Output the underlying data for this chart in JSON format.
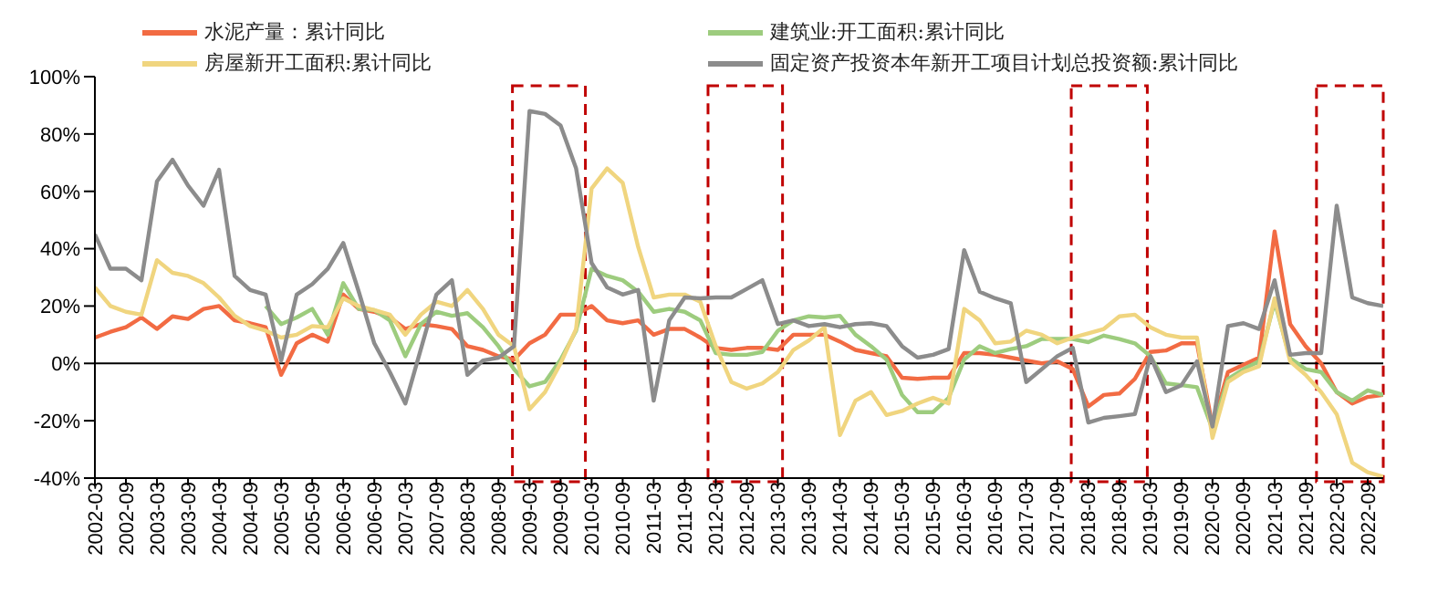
{
  "chart_data": {
    "type": "line",
    "categories": [
      "2002-03",
      null,
      "2002-09",
      null,
      "2003-03",
      null,
      "2003-09",
      null,
      "2004-03",
      null,
      "2004-09",
      null,
      "2005-03",
      null,
      "2005-09",
      null,
      "2006-03",
      null,
      "2006-09",
      null,
      "2007-03",
      null,
      "2007-09",
      null,
      "2008-03",
      null,
      "2008-09",
      null,
      "2009-03",
      null,
      "2009-09",
      null,
      "2010-03",
      null,
      "2010-09",
      null,
      "2011-03",
      null,
      "2011-09",
      null,
      "2012-03",
      null,
      "2012-09",
      null,
      "2013-03",
      null,
      "2013-09",
      null,
      "2014-03",
      null,
      "2014-09",
      null,
      "2015-03",
      null,
      "2015-09",
      null,
      "2016-03",
      null,
      "2016-09",
      null,
      "2017-03",
      null,
      "2017-09",
      null,
      "2018-03",
      null,
      "2018-09",
      null,
      "2019-03",
      null,
      "2019-09",
      null,
      "2020-03",
      null,
      "2020-09",
      null,
      "2021-03",
      null,
      "2021-09",
      null,
      "2022-03",
      null,
      "2022-09",
      null
    ],
    "series": [
      {
        "name": "水泥产量：累计同比",
        "color": "#f26b43",
        "values": [
          9,
          11,
          12.6,
          16,
          12,
          16.4,
          15.5,
          19,
          20,
          15,
          14,
          12.6,
          -4,
          7,
          10,
          7.6,
          24,
          19,
          18,
          16,
          12,
          13.7,
          13,
          12,
          6,
          4.7,
          2.5,
          1.3,
          7,
          10,
          17,
          17,
          20,
          15,
          14,
          15,
          10,
          12,
          12,
          9,
          5.4,
          4.7,
          5.4,
          5.4,
          4.7,
          10,
          10,
          10,
          7.6,
          4.7,
          3.6,
          2.5,
          -5,
          -5.4,
          -5,
          -5,
          3.6,
          3.6,
          3,
          2,
          1,
          0,
          0.7,
          -2,
          -15,
          -11,
          -10.5,
          -5.4,
          4,
          4.5,
          7,
          7,
          -22,
          -3,
          -0.5,
          2,
          46,
          13.7,
          6,
          0,
          -10,
          -14,
          -11.7,
          -11
        ]
      },
      {
        "name": "建筑业:开工面积:累计同比",
        "color": "#9dcc7e",
        "values": [
          null,
          null,
          null,
          null,
          null,
          null,
          null,
          null,
          null,
          null,
          null,
          20,
          13.7,
          16,
          19,
          10,
          28,
          19,
          18.6,
          15,
          2.5,
          13.7,
          18,
          16.6,
          17.5,
          12.6,
          6,
          -2,
          -8,
          -6.5,
          1.3,
          11.4,
          33,
          30.5,
          29,
          25,
          18,
          19,
          18,
          15,
          3.6,
          3,
          3,
          4,
          11.4,
          15,
          16.4,
          16,
          16.6,
          10,
          6,
          1.3,
          -11,
          -17,
          -17,
          -12,
          1.3,
          6,
          3.6,
          5,
          6,
          8.5,
          8.5,
          8.5,
          7.4,
          9.7,
          8.5,
          7,
          2.5,
          -7,
          -7.6,
          -8.3,
          -23,
          -5.4,
          -2,
          0.7,
          21.5,
          1.8,
          -2,
          -3,
          -10,
          -13,
          -9.4,
          -11
        ]
      },
      {
        "name": "房屋新开工面积:累计同比",
        "color": "#f0d57f",
        "values": [
          26.5,
          20,
          18,
          17,
          36,
          31.6,
          30.5,
          28,
          23,
          16.6,
          13,
          11.4,
          9,
          10,
          13,
          12.6,
          22.7,
          20,
          18.6,
          17,
          10,
          17,
          21.5,
          20,
          25.6,
          19,
          10,
          6,
          -16,
          -10,
          0,
          12,
          61,
          68,
          63,
          40.6,
          23,
          24,
          24,
          21.5,
          6,
          -6.5,
          -8.8,
          -7,
          -3,
          4.7,
          8,
          12.6,
          -25,
          -13,
          -10,
          -18,
          -16.6,
          -14,
          -12,
          -14,
          19,
          15,
          7,
          7.6,
          11.4,
          10,
          7,
          9,
          10.5,
          12,
          16.4,
          17,
          12.6,
          10,
          9,
          9,
          -26,
          -6.5,
          -3,
          -1,
          22.7,
          0.7,
          -4,
          -10,
          -17.7,
          -34.6,
          -38,
          -39.5
        ]
      },
      {
        "name": "固定资产投资本年新开工项目计划总投资额:累计同比",
        "color": "#8c8c8c",
        "values": [
          45,
          33,
          33,
          29,
          63.5,
          71,
          62,
          55,
          67.5,
          30.5,
          25.6,
          24,
          1,
          24,
          27.6,
          33,
          42,
          25,
          7,
          -3,
          -14,
          5,
          24,
          29,
          -4,
          1,
          2,
          6,
          88,
          87,
          83,
          68,
          35,
          26.5,
          24,
          25.6,
          -13,
          15,
          23,
          22.7,
          23,
          23,
          26,
          29,
          13.7,
          15,
          13,
          13.7,
          12.6,
          13.7,
          14,
          13,
          6,
          2,
          3,
          5,
          39.5,
          25,
          22.7,
          21,
          -6.5,
          -2,
          2.5,
          5.4,
          -20.6,
          -19,
          -18.4,
          -17.7,
          2.5,
          -10,
          -7.6,
          0.7,
          -22,
          13,
          14,
          12,
          29,
          3,
          3.6,
          3.6,
          55,
          23,
          21,
          20
        ]
      }
    ],
    "ylim": [
      -40,
      100
    ],
    "yticks": [
      {
        "value": -40,
        "label": "-40%"
      },
      {
        "value": -20,
        "label": "-20%"
      },
      {
        "value": 0,
        "label": "0%"
      },
      {
        "value": 20,
        "label": "20%"
      },
      {
        "value": 40,
        "label": "40%"
      },
      {
        "value": 60,
        "label": "60%"
      },
      {
        "value": 80,
        "label": "80%"
      },
      {
        "value": 100,
        "label": "100%"
      }
    ],
    "ref_lines": [
      {
        "axis": "y",
        "value": 0,
        "color": "#000000"
      }
    ],
    "grid": false,
    "legend": "top",
    "marker": "none",
    "line_style": "solid"
  }
}
